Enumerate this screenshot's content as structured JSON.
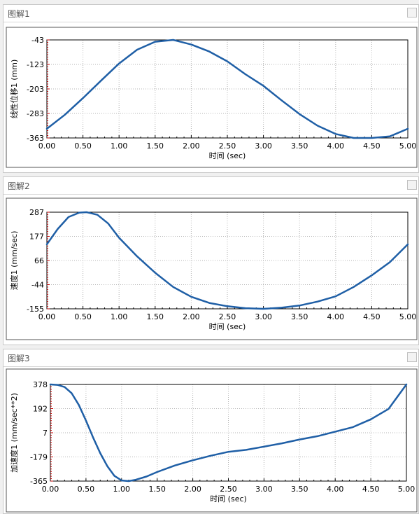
{
  "colors": {
    "line": "#1f5fa6",
    "grid": "#b5b5b5",
    "axis": "#000000",
    "tick_red": "#c00000"
  },
  "chart_data": [
    {
      "type": "line",
      "panel_title": "图解1",
      "xlabel": "时间 (sec)",
      "ylabel": "线性位移1 (mm)",
      "xlim": [
        0,
        5
      ],
      "ylim": [
        -363,
        -43
      ],
      "x_ticks": [
        "0.00",
        "0.50",
        "1.00",
        "1.50",
        "2.00",
        "2.50",
        "3.00",
        "3.50",
        "4.00",
        "4.50",
        "5.00"
      ],
      "y_ticks": [
        "-43",
        "-123",
        "-203",
        "-283",
        "-363"
      ],
      "series": [
        {
          "x": [
            0,
            0.25,
            0.5,
            0.75,
            1,
            1.25,
            1.5,
            1.75,
            2,
            2.25,
            2.5,
            2.75,
            3,
            3.25,
            3.5,
            3.75,
            4,
            4.25,
            4.5,
            4.75,
            5
          ],
          "y": [
            -333,
            -287,
            -233,
            -176,
            -120,
            -75,
            -49,
            -43,
            -58,
            -81,
            -113,
            -155,
            -193,
            -240,
            -285,
            -323,
            -350,
            -363,
            -363,
            -358,
            -333
          ]
        }
      ]
    },
    {
      "type": "line",
      "panel_title": "图解2",
      "xlabel": "时间 (sec)",
      "ylabel": "速度1 (mm/sec)",
      "xlim": [
        0,
        5
      ],
      "ylim": [
        -155,
        287
      ],
      "x_ticks": [
        "0.00",
        "0.50",
        "1.00",
        "1.50",
        "2.00",
        "2.50",
        "3.00",
        "3.50",
        "4.00",
        "4.50",
        "5.00"
      ],
      "y_ticks": [
        "287",
        "177",
        "66",
        "-44",
        "-155"
      ],
      "series": [
        {
          "x": [
            0,
            0.15,
            0.3,
            0.45,
            0.55,
            0.7,
            0.85,
            1,
            1.25,
            1.5,
            1.75,
            2,
            2.25,
            2.5,
            2.75,
            3,
            3.25,
            3.5,
            3.75,
            4,
            4.25,
            4.5,
            4.75,
            5
          ],
          "y": [
            140,
            210,
            265,
            285,
            287,
            275,
            235,
            170,
            85,
            10,
            -55,
            -100,
            -128,
            -143,
            -152,
            -155,
            -150,
            -140,
            -122,
            -98,
            -55,
            -2,
            58,
            140
          ]
        }
      ]
    },
    {
      "type": "line",
      "panel_title": "图解3",
      "xlabel": "时间 (sec)",
      "ylabel": "加速度1 (mm/sec**2)",
      "xlim": [
        0,
        5
      ],
      "ylim": [
        -365,
        378
      ],
      "x_ticks": [
        "0.00",
        "0.50",
        "1.00",
        "1.50",
        "2.00",
        "2.50",
        "3.00",
        "3.50",
        "4.00",
        "4.50",
        "5.00"
      ],
      "y_ticks": [
        "378",
        "192",
        "7",
        "-179",
        "-365"
      ],
      "series": [
        {
          "x": [
            0,
            0.1,
            0.2,
            0.3,
            0.4,
            0.5,
            0.6,
            0.7,
            0.8,
            0.9,
            1,
            1.1,
            1.2,
            1.35,
            1.5,
            1.75,
            2,
            2.25,
            2.5,
            2.75,
            3,
            3.25,
            3.5,
            3.75,
            4,
            4.25,
            4.5,
            4.75,
            5
          ],
          "y": [
            378,
            375,
            358,
            310,
            220,
            100,
            -30,
            -150,
            -250,
            -325,
            -360,
            -365,
            -355,
            -330,
            -295,
            -245,
            -205,
            -170,
            -140,
            -125,
            -100,
            -75,
            -45,
            -20,
            15,
            50,
            110,
            190,
            378
          ]
        }
      ]
    }
  ]
}
